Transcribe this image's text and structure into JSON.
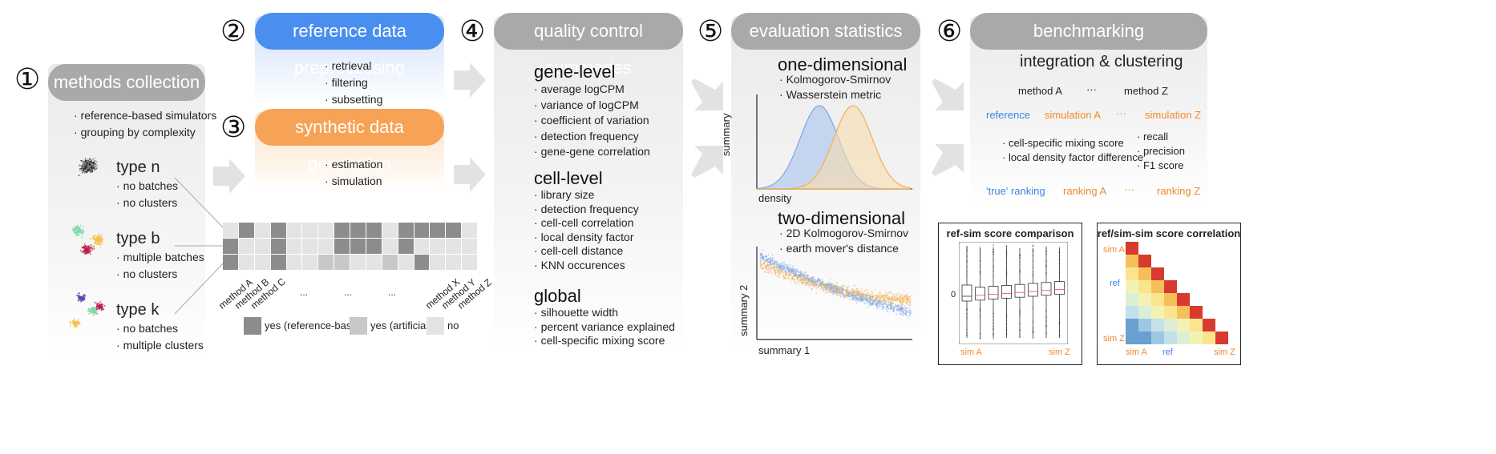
{
  "steps": {
    "s1": {
      "num": "①",
      "title": "methods collection",
      "items": [
        "reference-based simulators",
        "grouping by complexity"
      ]
    },
    "s2": {
      "num": "②",
      "title": "reference data preprocessing",
      "items": [
        "retrieval",
        "filtering",
        "subsetting"
      ]
    },
    "s3": {
      "num": "③",
      "title": "synthetic data generation",
      "items": [
        "estimation",
        "simulation"
      ]
    },
    "s4": {
      "num": "④",
      "title": "quality control summaries"
    },
    "s5": {
      "num": "⑤",
      "title": "evaluation statistics"
    },
    "s6": {
      "num": "⑥",
      "title": "benchmarking"
    }
  },
  "types": [
    {
      "name": "type n",
      "items": [
        "no batches",
        "no clusters"
      ]
    },
    {
      "name": "type b",
      "items": [
        "multiple batches",
        "no clusters"
      ]
    },
    {
      "name": "type k",
      "items": [
        "no batches",
        "multiple clusters"
      ]
    }
  ],
  "methods_grid": {
    "labels": [
      "method A",
      "method B",
      "method C",
      "...",
      "...",
      "...",
      "method X",
      "method Y",
      "method Z"
    ],
    "legend": [
      "yes (reference-based)",
      "yes (artificial)",
      "no"
    ],
    "colors": {
      "ref": "#8c8c8c",
      "art": "#c8c8c8",
      "no": "#e4e4e4"
    }
  },
  "qc": {
    "gene_title": "gene-level",
    "gene_items": [
      "average logCPM",
      "variance of logCPM",
      "coefficient of variation",
      "detection frequency",
      "gene-gene correlation"
    ],
    "cell_title": "cell-level",
    "cell_items": [
      "library size",
      "detection frequency",
      "cell-cell correlation",
      "local density factor",
      "cell-cell distance",
      "KNN occurences"
    ],
    "global_title": "global",
    "global_items": [
      "silhouette width",
      "percent variance explained",
      "cell-specific mixing score"
    ]
  },
  "eval": {
    "one_title": "one-dimensional",
    "one_items": [
      "Kolmogorov-Smirnov",
      "Wasserstein metric"
    ],
    "one_ylabel": "summary",
    "one_xlabel": "density",
    "two_title": "two-dimensional",
    "two_items": [
      "2D Kolmogorov-Smirnov",
      "earth mover's distance"
    ],
    "two_ylabel": "summary 2",
    "two_xlabel": "summary 1",
    "colors": {
      "blue": "#7aa6e8",
      "orange": "#f7c27a"
    }
  },
  "bench": {
    "title": "integration & clustering",
    "method_a": "method A",
    "dots": "···",
    "method_z": "method Z",
    "reference": "reference",
    "sim_a": "simulation A",
    "sim_z": "simulation Z",
    "metrics_left": [
      "cell-specific mixing score",
      "local density factor difference"
    ],
    "metrics_right": [
      "recall",
      "precision",
      "F1 score"
    ],
    "true_ranking": "'true' ranking",
    "ranking_a": "ranking A",
    "ranking_z": "ranking Z",
    "blue": "#3a86e6",
    "orange": "#f08a2c"
  },
  "boxplot": {
    "title": "ref-sim score comparison",
    "zero": "0",
    "x_left": "sim A",
    "x_right": "sim Z"
  },
  "corr": {
    "title": "ref/sim-sim score correlation",
    "y_top": "sim A",
    "y_mid": "ref",
    "y_bot": "sim Z",
    "x_left": "sim A",
    "x_mid": "ref",
    "x_right": "sim Z"
  }
}
